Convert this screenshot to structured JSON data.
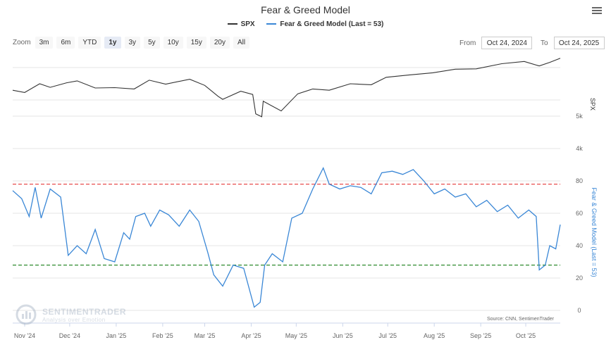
{
  "header": {
    "title": "Fear & Greed Model"
  },
  "legend": {
    "spx": "SPX",
    "fg": "Fear & Greed Model (Last = 53)"
  },
  "zoom": {
    "label": "Zoom",
    "buttons": [
      "3m",
      "6m",
      "YTD",
      "1y",
      "3y",
      "5y",
      "10y",
      "15y",
      "20y",
      "All"
    ],
    "active": "1y"
  },
  "range": {
    "from_label": "From",
    "from_value": "Oct 24, 2024",
    "to_label": "To",
    "to_value": "Oct 24, 2025"
  },
  "watermark": {
    "line1": "SENTIMENTRADER",
    "line2": "Analysis over Emotion"
  },
  "source": "Source: CNN, SentimenTrader",
  "colors": {
    "spx": "#333333",
    "fg": "#3a87d6",
    "greed_line": "#e84c4c",
    "fear_line": "#2e8b2e",
    "grid": "#e6e6e6"
  },
  "chart_data": {
    "type": "line",
    "title": "Fear & Greed Model",
    "x_tick_labels": [
      "Nov '24",
      "Dec '24",
      "Jan '25",
      "Feb '25",
      "Mar '25",
      "Apr '25",
      "May '25",
      "Jun '25",
      "Jul '25",
      "Aug '25",
      "Sep '25",
      "Oct '25"
    ],
    "x_range": [
      "2024-10-24",
      "2025-10-24"
    ],
    "spx_axis": {
      "label": "SPX",
      "ticks": [
        "5k",
        "4k"
      ]
    },
    "fg_axis": {
      "label": "Fear & Greed Model (Last = 53)",
      "ticks": [
        0,
        20,
        40,
        60,
        80
      ],
      "range": [
        0,
        90
      ]
    },
    "thresholds": {
      "greed": 78,
      "fear": 28
    },
    "series": [
      {
        "name": "SPX",
        "x": [
          "2024-10-24",
          "2024-11-01",
          "2024-11-11",
          "2024-11-18",
          "2024-11-29",
          "2024-12-06",
          "2024-12-18",
          "2024-12-31",
          "2025-01-13",
          "2025-01-23",
          "2025-02-03",
          "2025-02-19",
          "2025-03-01",
          "2025-03-10",
          "2025-03-13",
          "2025-03-25",
          "2025-04-02",
          "2025-04-04",
          "2025-04-08",
          "2025-04-09",
          "2025-04-21",
          "2025-05-02",
          "2025-05-12",
          "2025-05-23",
          "2025-06-06",
          "2025-06-20",
          "2025-06-30",
          "2025-07-15",
          "2025-07-31",
          "2025-08-15",
          "2025-08-29",
          "2025-09-15",
          "2025-09-30",
          "2025-10-10",
          "2025-10-17",
          "2025-10-24"
        ],
        "values": [
          5800,
          5730,
          6000,
          5890,
          6030,
          6090,
          5870,
          5880,
          5840,
          6110,
          5990,
          6140,
          5950,
          5610,
          5520,
          5770,
          5670,
          5070,
          4980,
          5460,
          5160,
          5690,
          5840,
          5800,
          6000,
          5970,
          6200,
          6270,
          6340,
          6450,
          6460,
          6620,
          6690,
          6550,
          6660,
          6790
        ]
      },
      {
        "name": "Fear & Greed Model",
        "x": [
          "2024-10-24",
          "2024-10-30",
          "2024-11-04",
          "2024-11-08",
          "2024-11-12",
          "2024-11-18",
          "2024-11-25",
          "2024-11-30",
          "2024-12-06",
          "2024-12-12",
          "2024-12-18",
          "2024-12-24",
          "2024-12-31",
          "2025-01-06",
          "2025-01-10",
          "2025-01-14",
          "2025-01-20",
          "2025-01-24",
          "2025-01-30",
          "2025-02-05",
          "2025-02-12",
          "2025-02-19",
          "2025-02-25",
          "2025-03-03",
          "2025-03-07",
          "2025-03-13",
          "2025-03-20",
          "2025-03-27",
          "2025-04-03",
          "2025-04-07",
          "2025-04-10",
          "2025-04-15",
          "2025-04-22",
          "2025-04-28",
          "2025-05-05",
          "2025-05-12",
          "2025-05-19",
          "2025-05-23",
          "2025-05-30",
          "2025-06-06",
          "2025-06-13",
          "2025-06-20",
          "2025-06-27",
          "2025-07-04",
          "2025-07-11",
          "2025-07-18",
          "2025-07-25",
          "2025-08-01",
          "2025-08-08",
          "2025-08-15",
          "2025-08-22",
          "2025-08-29",
          "2025-09-05",
          "2025-09-12",
          "2025-09-19",
          "2025-09-26",
          "2025-10-03",
          "2025-10-08",
          "2025-10-10",
          "2025-10-14",
          "2025-10-17",
          "2025-10-21",
          "2025-10-24"
        ],
        "values": [
          74,
          69,
          58,
          76,
          57,
          75,
          70,
          34,
          40,
          35,
          50,
          32,
          30,
          48,
          44,
          58,
          60,
          52,
          62,
          59,
          52,
          62,
          55,
          36,
          22,
          15,
          28,
          26,
          2,
          5,
          28,
          35,
          30,
          57,
          60,
          75,
          88,
          78,
          75,
          77,
          76,
          72,
          85,
          86,
          84,
          87,
          80,
          72,
          75,
          70,
          72,
          64,
          68,
          61,
          65,
          57,
          62,
          58,
          25,
          28,
          40,
          38,
          53
        ]
      }
    ]
  }
}
